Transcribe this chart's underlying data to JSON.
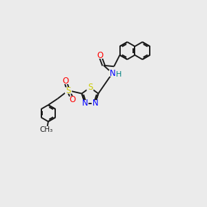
{
  "bg_color": "#ebebeb",
  "bond_color": "#1a1a1a",
  "atom_colors": {
    "O": "#ff0000",
    "N": "#0000ff",
    "S_thiad": "#cccc00",
    "S_sulf": "#cccc00",
    "H": "#008080",
    "C": "#1a1a1a"
  },
  "figsize": [
    3.0,
    3.0
  ],
  "dpi": 100,
  "xlim": [
    0,
    10
  ],
  "ylim": [
    0,
    10
  ]
}
